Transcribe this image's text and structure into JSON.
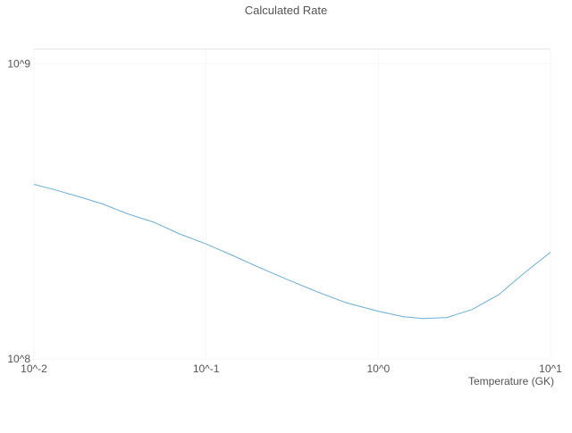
{
  "chart_data": {
    "type": "line",
    "title": "Calculated Rate",
    "xlabel": "Temperature (GK)",
    "ylabel": "",
    "xscale": "log",
    "yscale": "log",
    "xlim": [
      0.01,
      10
    ],
    "ylim": [
      100000000.0,
      1120000000.0
    ],
    "grid": "off",
    "legend": "none",
    "xticks": [
      {
        "value": 0.01,
        "label": "10^-2"
      },
      {
        "value": 0.1,
        "label": "10^-1"
      },
      {
        "value": 1.0,
        "label": "10^0"
      },
      {
        "value": 10.0,
        "label": "10^1"
      }
    ],
    "yticks": [
      {
        "value": 100000000.0,
        "label": "10^8"
      },
      {
        "value": 1000000000.0,
        "label": "10^9"
      }
    ],
    "series": [
      {
        "x": [
          0.01,
          0.013,
          0.018,
          0.025,
          0.035,
          0.05,
          0.07,
          0.1,
          0.14,
          0.2,
          0.3,
          0.45,
          0.65,
          1.0,
          1.4,
          1.8,
          2.5,
          3.5,
          5.0,
          7.0,
          10.0
        ],
        "y": [
          390000000.0,
          375000000.0,
          355000000.0,
          335000000.0,
          310000000.0,
          290000000.0,
          265000000.0,
          245000000.0,
          225000000.0,
          205000000.0,
          185000000.0,
          168000000.0,
          155000000.0,
          145000000.0,
          139000000.0,
          137000000.0,
          138000000.0,
          147000000.0,
          165000000.0,
          195000000.0,
          230000000.0
        ]
      }
    ],
    "colors": {
      "line": "#6baed6",
      "text": "#545454",
      "border": "#e3e3e3",
      "grid": "#f7f7f7"
    }
  }
}
